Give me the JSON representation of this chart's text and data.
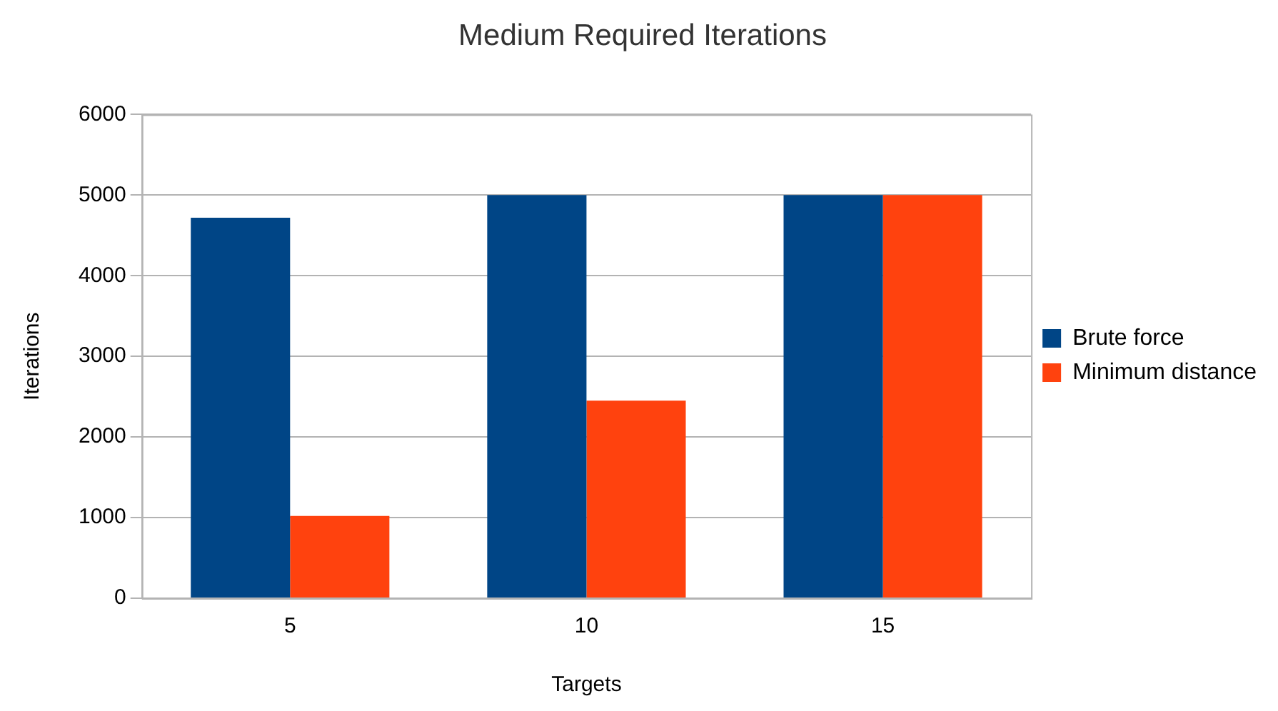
{
  "chart_data": {
    "type": "bar",
    "title": "Medium Required Iterations",
    "xlabel": "Targets",
    "ylabel": "Iterations",
    "categories": [
      "5",
      "10",
      "15"
    ],
    "series": [
      {
        "name": "Brute force",
        "color": "#004586",
        "values": [
          4720,
          5000,
          5000
        ]
      },
      {
        "name": "Minimum distance",
        "color": "#ff420e",
        "values": [
          1020,
          2450,
          5000
        ]
      }
    ],
    "ylim": [
      0,
      6000
    ],
    "yticks": [
      0,
      1000,
      2000,
      3000,
      4000,
      5000,
      6000
    ],
    "grid": "y",
    "legend": "right"
  }
}
